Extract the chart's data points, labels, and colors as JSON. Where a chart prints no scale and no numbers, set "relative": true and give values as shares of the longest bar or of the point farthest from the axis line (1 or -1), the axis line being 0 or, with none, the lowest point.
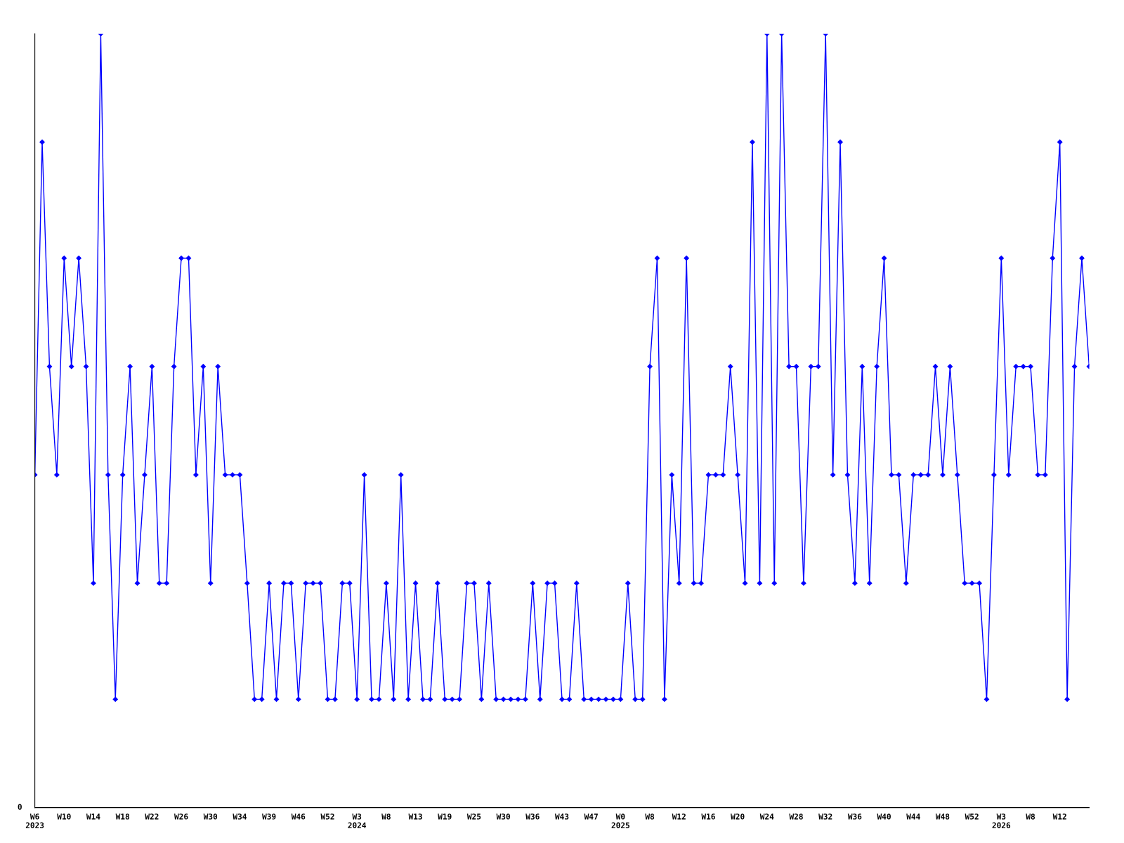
{
  "chart_data": {
    "type": "line",
    "relative": true,
    "marker": "diamond",
    "grid": false,
    "annotations": [
      "0"
    ],
    "categories": [
      "W6\n2023",
      null,
      null,
      null,
      "W10",
      null,
      null,
      null,
      "W14",
      null,
      null,
      null,
      "W18",
      null,
      null,
      null,
      "W22",
      null,
      null,
      null,
      "W26",
      null,
      null,
      null,
      "W30",
      null,
      null,
      null,
      "W34",
      null,
      null,
      null,
      "W39",
      null,
      null,
      null,
      "W46",
      null,
      null,
      null,
      "W52",
      null,
      null,
      null,
      "W3\n2024",
      null,
      null,
      null,
      "W8",
      null,
      null,
      null,
      "W13",
      null,
      null,
      null,
      "W19",
      null,
      null,
      null,
      "W25",
      null,
      null,
      null,
      "W30",
      null,
      null,
      null,
      "W36",
      null,
      null,
      null,
      "W43",
      null,
      null,
      null,
      "W47",
      null,
      null,
      null,
      "W0\n2025",
      null,
      null,
      null,
      "W8",
      null,
      null,
      null,
      "W12",
      null,
      null,
      null,
      "W16",
      null,
      null,
      null,
      "W20",
      null,
      null,
      null,
      "W24",
      null,
      null,
      null,
      "W28",
      null,
      null,
      null,
      "W32",
      null,
      null,
      null,
      "W36",
      null,
      null,
      null,
      "W40",
      null,
      null,
      null,
      "W44",
      null,
      null,
      null,
      "W48",
      null,
      null,
      null,
      "W52",
      null,
      null,
      null,
      "W3\n2026",
      null,
      null,
      null,
      "W8",
      null,
      null,
      null,
      "W12",
      null,
      null,
      null,
      null
    ],
    "series": [
      {
        "color": "#0000ff",
        "values": [
          0.43,
          0.86,
          0.57,
          0.43,
          0.71,
          0.57,
          0.71,
          0.57,
          0.29,
          1,
          0.43,
          0.14,
          0.43,
          0.57,
          0.29,
          0.43,
          0.57,
          0.29,
          0.29,
          0.57,
          0.71,
          0.71,
          0.43,
          0.57,
          0.29,
          0.57,
          0.43,
          0.43,
          0.43,
          0.29,
          0.14,
          0.14,
          0.29,
          0.14,
          0.29,
          0.29,
          0.14,
          0.29,
          0.29,
          0.29,
          0.14,
          0.14,
          0.29,
          0.29,
          0.14,
          0.43,
          0.14,
          0.14,
          0.29,
          0.14,
          0.43,
          0.14,
          0.29,
          0.14,
          0.14,
          0.29,
          0.14,
          0.14,
          0.14,
          0.29,
          0.29,
          0.14,
          0.29,
          0.14,
          0.14,
          0.14,
          0.14,
          0.14,
          0.29,
          0.14,
          0.29,
          0.29,
          0.14,
          0.14,
          0.29,
          0.14,
          0.14,
          0.14,
          0.14,
          0.14,
          0.14,
          0.29,
          0.14,
          0.14,
          0.57,
          0.71,
          0.14,
          0.43,
          0.29,
          0.71,
          0.29,
          0.29,
          0.43,
          0.43,
          0.43,
          0.57,
          0.43,
          0.29,
          0.86,
          0.29,
          1,
          0.29,
          1,
          0.57,
          0.57,
          0.29,
          0.57,
          0.57,
          1,
          0.43,
          0.86,
          0.43,
          0.29,
          0.57,
          0.29,
          0.57,
          0.71,
          0.43,
          0.43,
          0.29,
          0.43,
          0.43,
          0.43,
          0.57,
          0.43,
          0.57,
          0.43,
          0.29,
          0.29,
          0.29,
          0.14,
          0.43,
          0.71,
          0.43,
          0.57,
          0.57,
          0.57,
          0.43,
          0.43,
          0.71,
          0.86,
          0.14,
          0.57,
          0.71,
          0.57
        ]
      }
    ]
  }
}
